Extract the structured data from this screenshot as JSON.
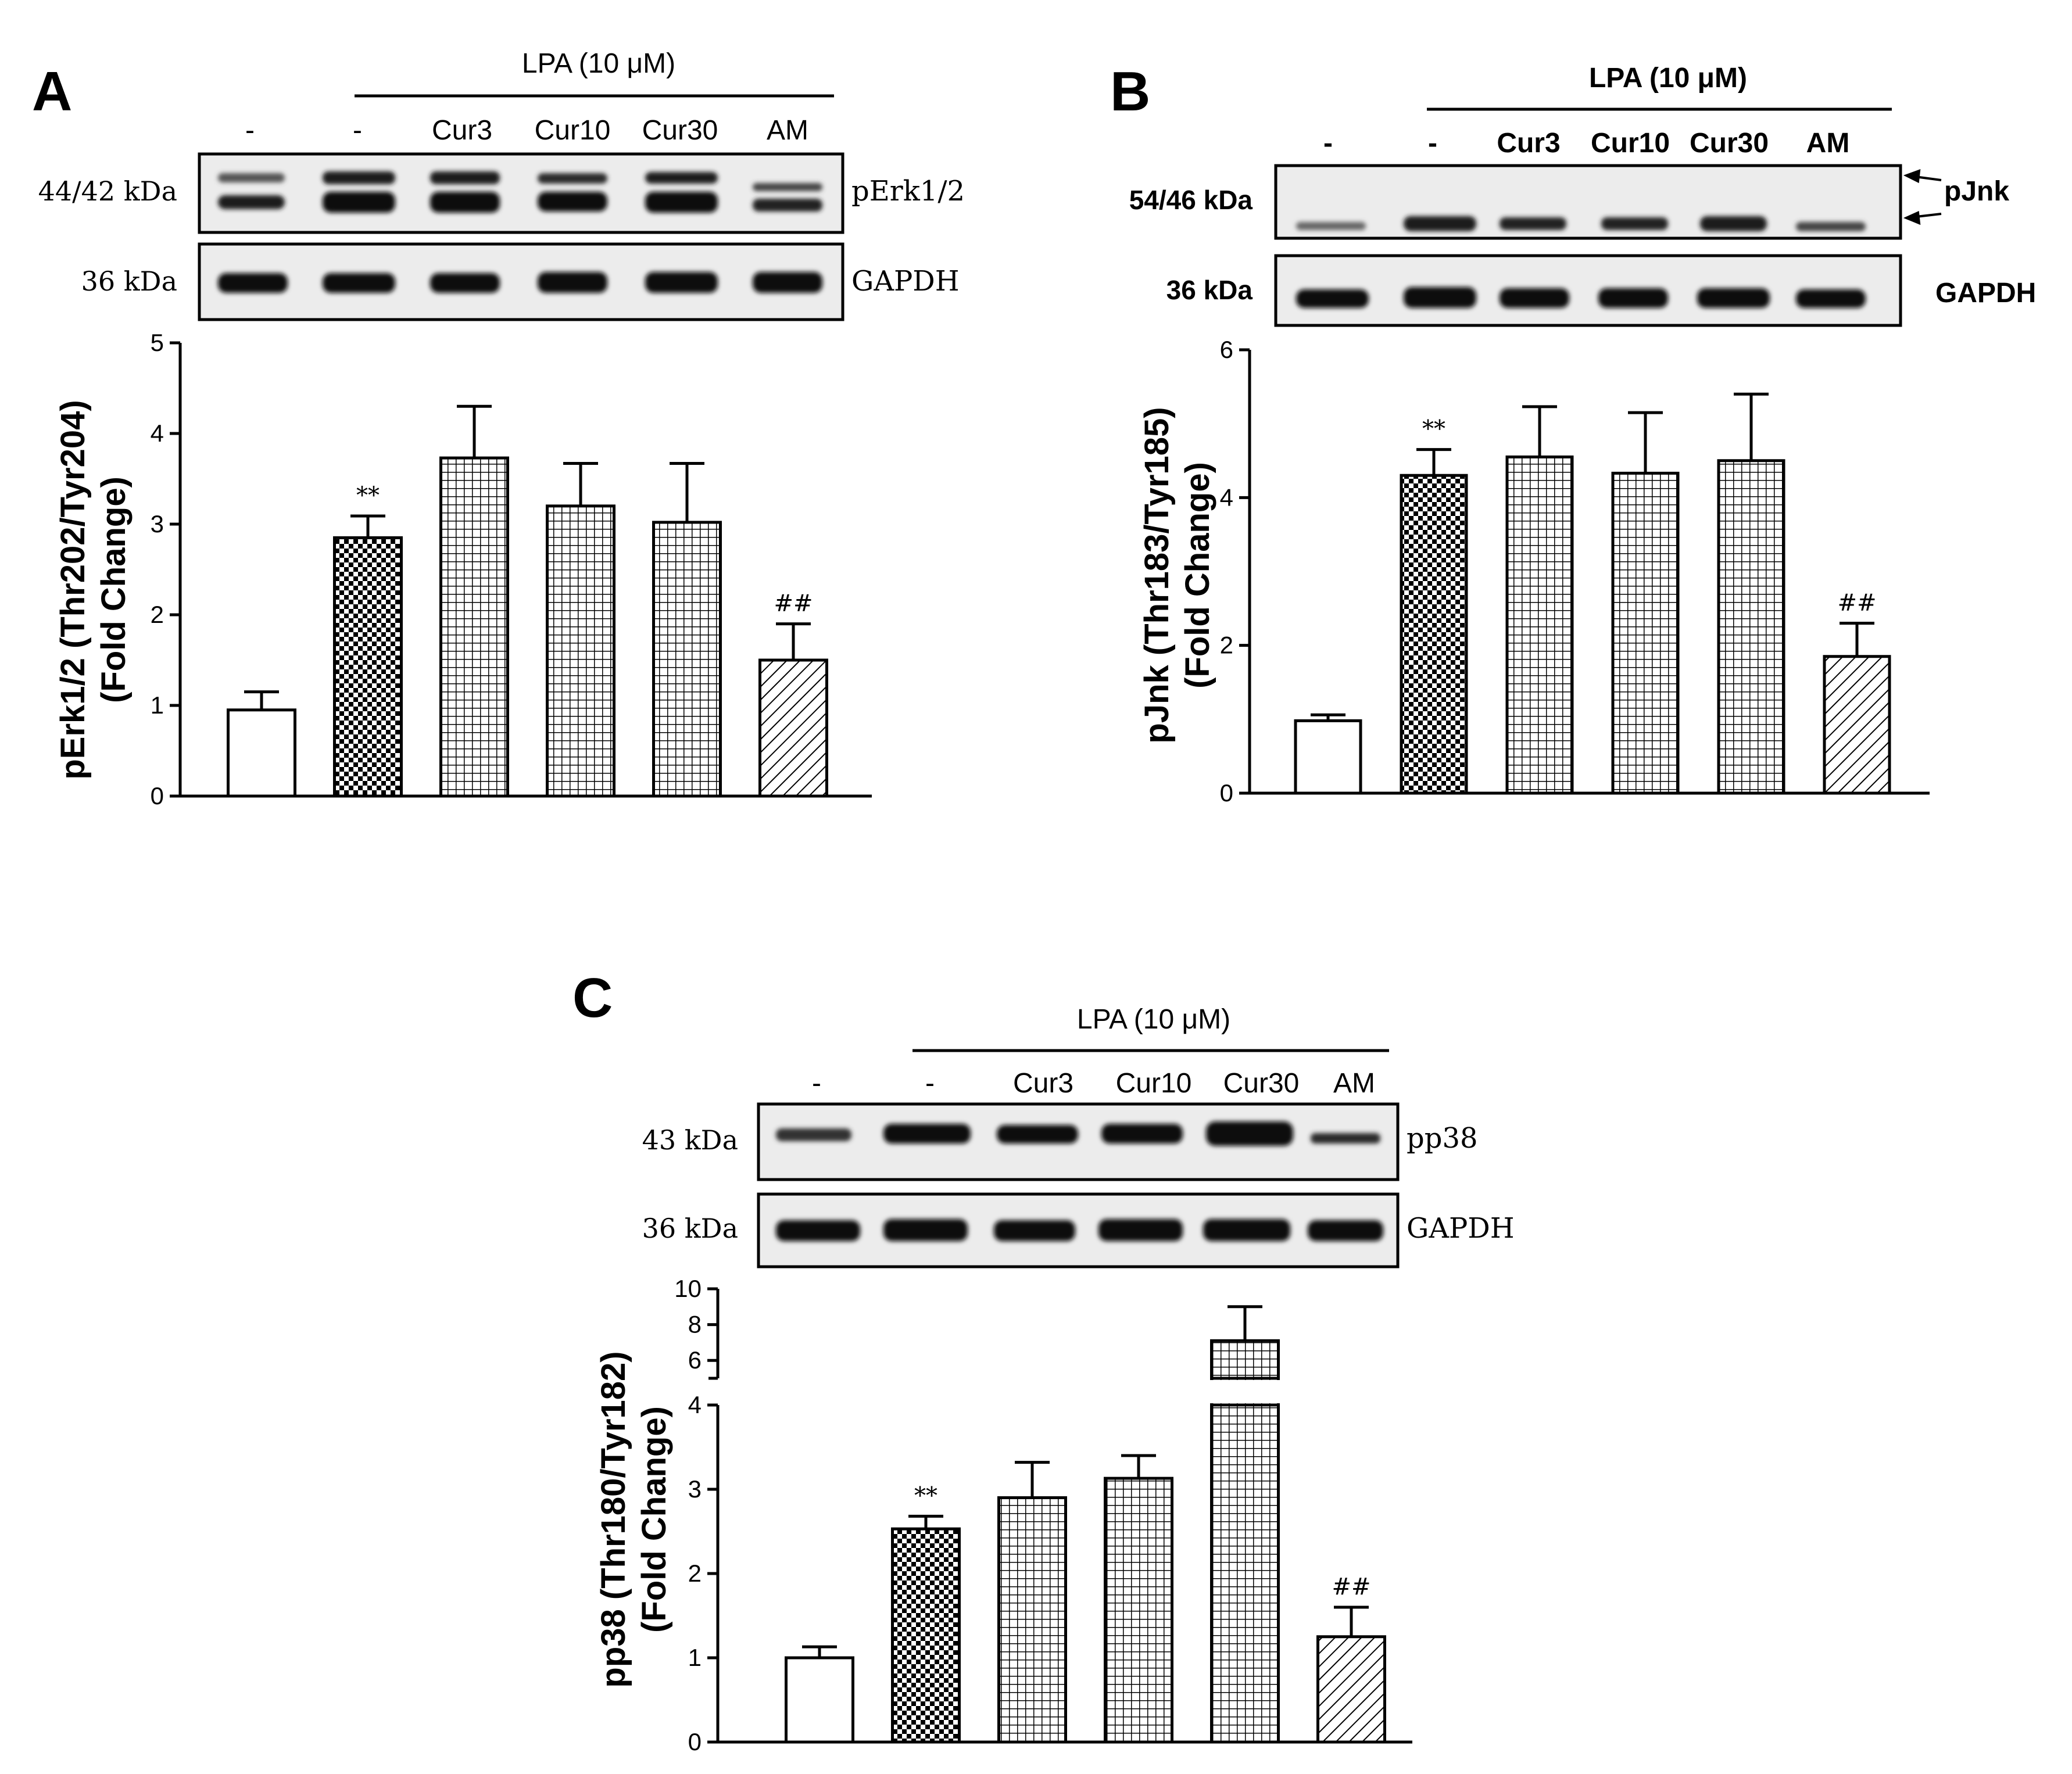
{
  "colors": {
    "ink": "#000000",
    "band": "#1a1a1a",
    "blot_bg": "#ececec",
    "bar_fill": "#ffffff"
  },
  "panels": [
    {
      "id": "A",
      "letter": "A",
      "treatment_header": "LPA (10 μM)",
      "lanes": [
        "-",
        "-",
        "Cur3",
        "Cur10",
        "Cur30",
        "AM"
      ],
      "blots": [
        {
          "mw": "44/42 kDa",
          "protein": "pErk1/2"
        },
        {
          "mw": "36 kDa",
          "protein": "GAPDH"
        }
      ],
      "ylabel_line1": "pErk1/2 (Thr202/Tyr204)",
      "ylabel_line2": "(Fold Change)",
      "annotations": [
        "**",
        "##"
      ]
    },
    {
      "id": "B",
      "letter": "B",
      "treatment_header": "LPA (10 μM)",
      "lanes": [
        "-",
        "-",
        "Cur3",
        "Cur10",
        "Cur30",
        "AM"
      ],
      "blots": [
        {
          "mw": "54/46 kDa",
          "protein": "pJnk"
        },
        {
          "mw": "36 kDa",
          "protein": "GAPDH"
        }
      ],
      "ylabel_line1": "pJnk (Thr183/Tyr185)",
      "ylabel_line2": "(Fold Change)",
      "annotations": [
        "**",
        "##"
      ]
    },
    {
      "id": "C",
      "letter": "C",
      "treatment_header": "LPA (10 μM)",
      "lanes": [
        "-",
        "-",
        "Cur3",
        "Cur10",
        "Cur30",
        "AM"
      ],
      "blots": [
        {
          "mw": "43 kDa",
          "protein": "pp38"
        },
        {
          "mw": "36 kDa",
          "protein": "GAPDH"
        }
      ],
      "ylabel_line1": "pp38 (Thr180/Tyr182)",
      "ylabel_line2": "(Fold Change)",
      "annotations": [
        "**",
        "##"
      ]
    }
  ],
  "chart_data": [
    {
      "panel": "A",
      "type": "bar",
      "categories": [
        "-",
        "-",
        "Cur3",
        "Cur10",
        "Cur30",
        "AM"
      ],
      "values": [
        0.95,
        2.85,
        3.73,
        3.2,
        3.02,
        1.5
      ],
      "errors": [
        0.2,
        0.24,
        0.57,
        0.47,
        0.65,
        0.4
      ],
      "patterns": [
        "open",
        "checker",
        "grid",
        "grid",
        "grid",
        "hatch"
      ],
      "ylim": [
        0,
        5
      ],
      "yticks": [
        0,
        1,
        2,
        3,
        4,
        5
      ],
      "annotations": [
        {
          "category_index": 1,
          "text": "**"
        },
        {
          "category_index": 5,
          "text": "##"
        }
      ],
      "ylabel": "pErk1/2 (Thr202/Tyr204) (Fold Change)"
    },
    {
      "panel": "B",
      "type": "bar",
      "categories": [
        "-",
        "-",
        "Cur3",
        "Cur10",
        "Cur30",
        "AM"
      ],
      "values": [
        0.98,
        4.3,
        4.55,
        4.33,
        4.5,
        1.85
      ],
      "errors": [
        0.08,
        0.35,
        0.68,
        0.82,
        0.9,
        0.45
      ],
      "patterns": [
        "open",
        "checker",
        "grid",
        "grid",
        "grid",
        "hatch"
      ],
      "ylim": [
        0,
        6
      ],
      "yticks": [
        0,
        2,
        4,
        6
      ],
      "annotations": [
        {
          "category_index": 1,
          "text": "**"
        },
        {
          "category_index": 5,
          "text": "##"
        }
      ],
      "ylabel": "pJnk (Thr183/Tyr185) (Fold Change)"
    },
    {
      "panel": "C",
      "type": "bar",
      "categories": [
        "-",
        "-",
        "Cur3",
        "Cur10",
        "Cur30",
        "AM"
      ],
      "values": [
        1.0,
        2.53,
        2.9,
        3.13,
        7.1,
        1.25
      ],
      "errors": [
        0.13,
        0.15,
        0.42,
        0.27,
        1.9,
        0.35
      ],
      "patterns": [
        "open",
        "checker",
        "grid",
        "grid",
        "grid",
        "hatch"
      ],
      "ylim": [
        0,
        10
      ],
      "axis_break": {
        "lower": [
          0,
          4
        ],
        "upper": [
          5,
          10
        ]
      },
      "yticks_lower": [
        0,
        1,
        2,
        3,
        4
      ],
      "yticks_upper": [
        6,
        8,
        10
      ],
      "annotations": [
        {
          "category_index": 1,
          "text": "**"
        },
        {
          "category_index": 5,
          "text": "##"
        }
      ],
      "ylabel": "pp38 (Thr180/Tyr182) (Fold Change)"
    }
  ]
}
